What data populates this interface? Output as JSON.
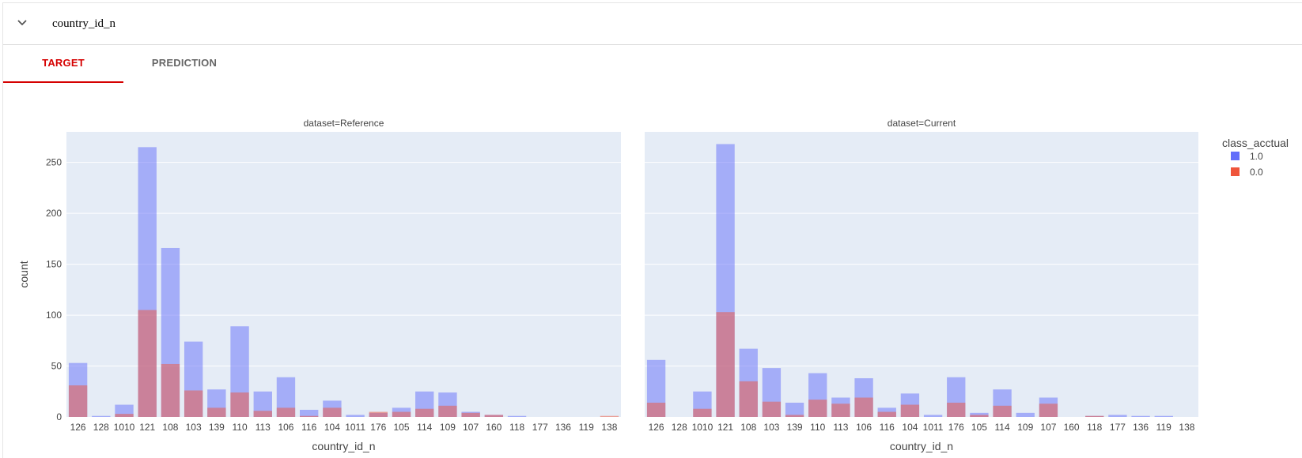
{
  "feature": {
    "name": "country_id_n"
  },
  "tabs": [
    {
      "label": "TARGET",
      "active": true
    },
    {
      "label": "PREDICTION",
      "active": false
    }
  ],
  "chart_data": {
    "type": "bar",
    "barmode": "overlay",
    "ylabel": "count",
    "xlabel": "country_id_n",
    "ylim": [
      0,
      280
    ],
    "yticks": [
      0,
      50,
      100,
      150,
      200,
      250
    ],
    "grid": true,
    "legend": {
      "title": "class_acctual",
      "placement": "right",
      "items": [
        {
          "name": "1.0",
          "color": "#636efa"
        },
        {
          "name": "0.0",
          "color": "#ef553b"
        }
      ]
    },
    "categories": [
      "126",
      "128",
      "1010",
      "121",
      "108",
      "103",
      "139",
      "110",
      "113",
      "106",
      "116",
      "104",
      "1011",
      "176",
      "105",
      "114",
      "109",
      "107",
      "160",
      "118",
      "177",
      "136",
      "119",
      "138"
    ],
    "panels": [
      {
        "title": "dataset=Reference",
        "series": [
          {
            "name": "1.0",
            "color": "#636efa",
            "values": [
              53,
              1,
              12,
              265,
              166,
              74,
              27,
              89,
              25,
              39,
              7,
              16,
              2,
              4,
              9,
              25,
              24,
              5,
              2,
              1,
              0,
              0,
              0,
              0
            ]
          },
          {
            "name": "0.0",
            "color": "#ef553b",
            "values": [
              31,
              0,
              3,
              105,
              52,
              26,
              9,
              24,
              6,
              9,
              1,
              9,
              0,
              5,
              5,
              8,
              11,
              4,
              2,
              0,
              0,
              0,
              0,
              1
            ]
          }
        ]
      },
      {
        "title": "dataset=Current",
        "series": [
          {
            "name": "1.0",
            "color": "#636efa",
            "values": [
              56,
              0,
              25,
              268,
              67,
              48,
              14,
              43,
              19,
              38,
              9,
              23,
              2,
              39,
              4,
              27,
              4,
              19,
              0,
              1,
              2,
              1,
              1,
              0
            ]
          },
          {
            "name": "0.0",
            "color": "#ef553b",
            "values": [
              14,
              0,
              8,
              103,
              35,
              15,
              2,
              17,
              13,
              19,
              5,
              12,
              0,
              14,
              2,
              11,
              0,
              13,
              0,
              1,
              0,
              0,
              0,
              0
            ]
          }
        ]
      }
    ]
  }
}
